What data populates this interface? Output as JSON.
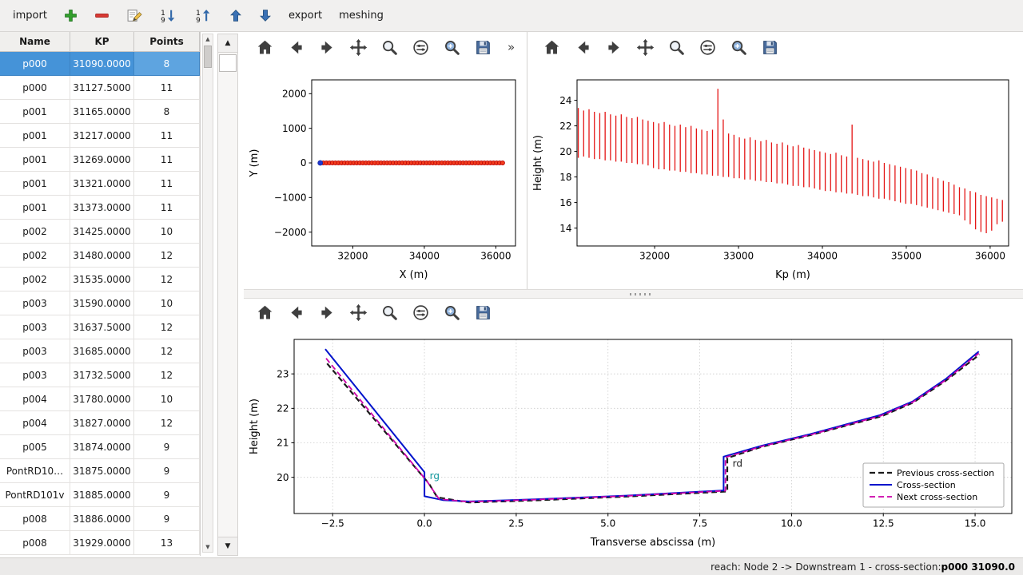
{
  "app": {
    "toolbar": {
      "items": [
        {
          "kind": "label",
          "name": "import-button",
          "label": "import"
        },
        {
          "kind": "icon",
          "name": "add-cross-section-button",
          "icon": "plus"
        },
        {
          "kind": "icon",
          "name": "remove-cross-section-button",
          "icon": "minus"
        },
        {
          "kind": "icon",
          "name": "edit-cross-section-button",
          "icon": "edit"
        },
        {
          "kind": "icon",
          "name": "sort-descending-button",
          "icon": "sort-down"
        },
        {
          "kind": "icon",
          "name": "sort-ascending-button",
          "icon": "sort-up"
        },
        {
          "kind": "icon",
          "name": "move-up-button",
          "icon": "arrow-up"
        },
        {
          "kind": "icon",
          "name": "move-down-button",
          "icon": "arrow-down"
        },
        {
          "kind": "label",
          "name": "export-button",
          "label": "export"
        },
        {
          "kind": "label",
          "name": "meshing-button",
          "label": "meshing"
        }
      ]
    },
    "status": {
      "prefix": "reach: Node 2 -> Downstream 1 - cross-section: ",
      "selection": "p000 31090.0"
    }
  },
  "table": {
    "headers": [
      "Name",
      "KP",
      "Points"
    ],
    "selected_row": 0,
    "rows": [
      [
        "p000",
        "31090.0000",
        "8"
      ],
      [
        "p000",
        "31127.5000",
        "11"
      ],
      [
        "p001",
        "31165.0000",
        "8"
      ],
      [
        "p001",
        "31217.0000",
        "11"
      ],
      [
        "p001",
        "31269.0000",
        "11"
      ],
      [
        "p001",
        "31321.0000",
        "11"
      ],
      [
        "p001",
        "31373.0000",
        "11"
      ],
      [
        "p002",
        "31425.0000",
        "10"
      ],
      [
        "p002",
        "31480.0000",
        "12"
      ],
      [
        "p002",
        "31535.0000",
        "12"
      ],
      [
        "p003",
        "31590.0000",
        "10"
      ],
      [
        "p003",
        "31637.5000",
        "12"
      ],
      [
        "p003",
        "31685.0000",
        "12"
      ],
      [
        "p003",
        "31732.5000",
        "12"
      ],
      [
        "p004",
        "31780.0000",
        "10"
      ],
      [
        "p004",
        "31827.0000",
        "12"
      ],
      [
        "p005",
        "31874.0000",
        "9"
      ],
      [
        "PontRD10…",
        "31875.0000",
        "9"
      ],
      [
        "PontRD101v",
        "31885.0000",
        "9"
      ],
      [
        "p008",
        "31886.0000",
        "9"
      ],
      [
        "p008",
        "31929.0000",
        "13"
      ]
    ]
  },
  "plot_toolbars": {
    "icons": [
      "home",
      "back",
      "forward",
      "pan",
      "zoom",
      "subplots",
      "customize",
      "save"
    ],
    "overflow": "»"
  },
  "chart_data": [
    {
      "id": "plan-view",
      "type": "scatter",
      "xlabel": "X (m)",
      "ylabel": "Y (m)",
      "xlim": [
        30850,
        36550
      ],
      "ylim": [
        -2400,
        2400
      ],
      "xticks": [
        32000,
        34000,
        36000
      ],
      "yticks": [
        -2000,
        -1000,
        0,
        1000,
        2000
      ],
      "ytick_labels": [
        "−2000",
        "−1000",
        "0",
        "1000",
        "2000"
      ],
      "grid": false,
      "series": [
        {
          "name": "river-axis-points",
          "type": "scatter",
          "color": "#f23c1e",
          "edge": "#b80000",
          "size": 2.6,
          "y": 0,
          "x": [
            31090,
            31175,
            31260,
            31345,
            31430,
            31515,
            31600,
            31685,
            31770,
            31855,
            31940,
            32025,
            32110,
            32195,
            32280,
            32365,
            32450,
            32535,
            32620,
            32705,
            32790,
            32875,
            32960,
            33045,
            33130,
            33215,
            33300,
            33385,
            33470,
            33555,
            33640,
            33725,
            33810,
            33895,
            33980,
            34065,
            34150,
            34235,
            34320,
            34405,
            34490,
            34575,
            34660,
            34745,
            34830,
            34915,
            35000,
            35085,
            35170,
            35255,
            35340,
            35425,
            35510,
            35595,
            35680,
            35765,
            35850,
            35935,
            36020,
            36105,
            36190
          ]
        },
        {
          "name": "selected-cross-section-point",
          "type": "scatter",
          "color": "#2038d0",
          "edge": "#1226a0",
          "size": 3,
          "y": 0,
          "x": [
            31090
          ]
        }
      ]
    },
    {
      "id": "long-profile",
      "type": "vlines",
      "xlabel": "Kp (m)",
      "ylabel": "Height (m)",
      "xlim": [
        31075,
        36220
      ],
      "ylim": [
        12.6,
        25.6
      ],
      "xticks": [
        32000,
        33000,
        34000,
        35000,
        36000
      ],
      "yticks": [
        14,
        16,
        18,
        20,
        22,
        24
      ],
      "grid": false,
      "series": [
        {
          "name": "cross-section-extents",
          "type": "vlines",
          "color": "#e41616",
          "width": 1.3,
          "lines": [
            [
              31090,
              19.5,
              23.4
            ],
            [
              31154,
              19.6,
              23.2
            ],
            [
              31218,
              19.5,
              23.3
            ],
            [
              31282,
              19.4,
              23.1
            ],
            [
              31346,
              19.4,
              23.0
            ],
            [
              31410,
              19.3,
              23.1
            ],
            [
              31474,
              19.3,
              22.9
            ],
            [
              31538,
              19.2,
              22.8
            ],
            [
              31602,
              19.2,
              22.9
            ],
            [
              31666,
              19.1,
              22.7
            ],
            [
              31730,
              19.1,
              22.6
            ],
            [
              31794,
              19.0,
              22.7
            ],
            [
              31858,
              19.0,
              22.5
            ],
            [
              31922,
              18.9,
              22.4
            ],
            [
              31986,
              18.7,
              22.3
            ],
            [
              32050,
              18.6,
              22.2
            ],
            [
              32114,
              18.6,
              22.3
            ],
            [
              32178,
              18.5,
              22.1
            ],
            [
              32242,
              18.5,
              22.0
            ],
            [
              32306,
              18.4,
              22.1
            ],
            [
              32370,
              18.4,
              21.9
            ],
            [
              32434,
              18.3,
              22.0
            ],
            [
              32498,
              18.3,
              21.8
            ],
            [
              32562,
              18.2,
              21.7
            ],
            [
              32626,
              18.2,
              21.6
            ],
            [
              32690,
              18.1,
              21.7
            ],
            [
              32754,
              18.1,
              24.9
            ],
            [
              32818,
              18.0,
              22.5
            ],
            [
              32882,
              18.0,
              21.4
            ],
            [
              32946,
              17.9,
              21.3
            ],
            [
              33010,
              17.9,
              21.1
            ],
            [
              33074,
              17.8,
              21.0
            ],
            [
              33138,
              17.8,
              21.1
            ],
            [
              33202,
              17.7,
              20.9
            ],
            [
              33266,
              17.7,
              20.8
            ],
            [
              33330,
              17.6,
              20.9
            ],
            [
              33394,
              17.6,
              20.7
            ],
            [
              33458,
              17.5,
              20.6
            ],
            [
              33522,
              17.5,
              20.7
            ],
            [
              33586,
              17.4,
              20.5
            ],
            [
              33650,
              17.3,
              20.4
            ],
            [
              33714,
              17.3,
              20.5
            ],
            [
              33778,
              17.2,
              20.3
            ],
            [
              33842,
              17.2,
              20.2
            ],
            [
              33906,
              17.1,
              20.1
            ],
            [
              33970,
              17.0,
              20.0
            ],
            [
              34034,
              16.9,
              19.9
            ],
            [
              34098,
              16.9,
              19.8
            ],
            [
              34162,
              16.8,
              19.9
            ],
            [
              34226,
              16.8,
              19.7
            ],
            [
              34290,
              16.7,
              19.6
            ],
            [
              34354,
              16.7,
              22.1
            ],
            [
              34418,
              16.6,
              19.5
            ],
            [
              34482,
              16.5,
              19.4
            ],
            [
              34546,
              16.5,
              19.3
            ],
            [
              34610,
              16.4,
              19.2
            ],
            [
              34674,
              16.3,
              19.3
            ],
            [
              34738,
              16.3,
              19.1
            ],
            [
              34802,
              16.2,
              19.0
            ],
            [
              34866,
              16.1,
              18.9
            ],
            [
              34930,
              16.0,
              18.8
            ],
            [
              34994,
              15.9,
              18.7
            ],
            [
              35058,
              15.9,
              18.6
            ],
            [
              35122,
              15.8,
              18.5
            ],
            [
              35186,
              15.7,
              18.3
            ],
            [
              35250,
              15.6,
              18.2
            ],
            [
              35314,
              15.5,
              18.0
            ],
            [
              35378,
              15.4,
              17.9
            ],
            [
              35442,
              15.3,
              17.7
            ],
            [
              35506,
              15.2,
              17.6
            ],
            [
              35570,
              15.1,
              17.4
            ],
            [
              35634,
              15.0,
              17.2
            ],
            [
              35698,
              14.6,
              17.1
            ],
            [
              35762,
              14.3,
              16.9
            ],
            [
              35826,
              13.9,
              16.8
            ],
            [
              35890,
              13.7,
              16.6
            ],
            [
              35954,
              13.6,
              16.5
            ],
            [
              36018,
              13.8,
              16.4
            ],
            [
              36082,
              14.3,
              16.3
            ],
            [
              36146,
              14.5,
              16.2
            ]
          ]
        }
      ]
    },
    {
      "id": "cross-section",
      "type": "line",
      "xlabel": "Transverse abscissa (m)",
      "ylabel": "Height (m)",
      "xlim": [
        -3.55,
        16.0
      ],
      "ylim": [
        18.95,
        24.0
      ],
      "xticks": [
        -2.5,
        0.0,
        2.5,
        5.0,
        7.5,
        10.0,
        12.5,
        15.0
      ],
      "xtick_labels": [
        "−2.5",
        "0.0",
        "2.5",
        "5.0",
        "7.5",
        "10.0",
        "12.5",
        "15.0"
      ],
      "yticks": [
        20,
        21,
        22,
        23
      ],
      "grid": true,
      "legend": {
        "position": "lower right"
      },
      "annotations": [
        {
          "x": 0.1,
          "y": 19.95,
          "text": "rg",
          "color": "#13989e"
        },
        {
          "x": 8.35,
          "y": 20.3,
          "text": "rd",
          "color": "#1a1a1a"
        }
      ],
      "series": [
        {
          "name": "previous-cross-section",
          "label": "Previous cross-section",
          "type": "line",
          "color": "#1a1a1a",
          "width": 2.2,
          "dash": "7,4",
          "points": [
            [
              -2.65,
              23.3
            ],
            [
              0.12,
              19.82
            ],
            [
              0.35,
              19.42
            ],
            [
              1.2,
              19.27
            ],
            [
              3.0,
              19.33
            ],
            [
              5.5,
              19.44
            ],
            [
              8.25,
              19.59
            ],
            [
              8.25,
              20.56
            ],
            [
              9.2,
              20.89
            ],
            [
              10.5,
              21.22
            ],
            [
              12.45,
              21.77
            ],
            [
              13.3,
              22.16
            ],
            [
              14.2,
              22.8
            ],
            [
              15.12,
              23.56
            ]
          ]
        },
        {
          "name": "current-cross-section",
          "label": "Cross-section",
          "type": "line",
          "color": "#0013cc",
          "width": 2.0,
          "points": [
            [
              -2.7,
              23.72
            ],
            [
              0.0,
              20.15
            ],
            [
              0.0,
              19.45
            ],
            [
              0.5,
              19.34
            ],
            [
              1.2,
              19.3
            ],
            [
              3.0,
              19.36
            ],
            [
              5.5,
              19.47
            ],
            [
              8.15,
              19.62
            ],
            [
              8.15,
              20.6
            ],
            [
              9.2,
              20.92
            ],
            [
              10.5,
              21.25
            ],
            [
              12.4,
              21.8
            ],
            [
              13.3,
              22.2
            ],
            [
              14.2,
              22.85
            ],
            [
              15.1,
              23.65
            ]
          ]
        },
        {
          "name": "next-cross-section",
          "label": "Next cross-section",
          "type": "line",
          "color": "#cc00aa",
          "width": 1.8,
          "dash": "7,4",
          "points": [
            [
              -2.68,
              23.45
            ],
            [
              0.06,
              19.9
            ],
            [
              0.4,
              19.37
            ],
            [
              1.2,
              19.29
            ],
            [
              3.0,
              19.35
            ],
            [
              5.5,
              19.46
            ],
            [
              8.2,
              19.61
            ],
            [
              8.2,
              20.58
            ],
            [
              9.2,
              20.9
            ],
            [
              10.5,
              21.23
            ],
            [
              12.42,
              21.78
            ],
            [
              13.3,
              22.18
            ],
            [
              14.2,
              22.82
            ],
            [
              15.1,
              23.6
            ]
          ]
        }
      ]
    }
  ]
}
